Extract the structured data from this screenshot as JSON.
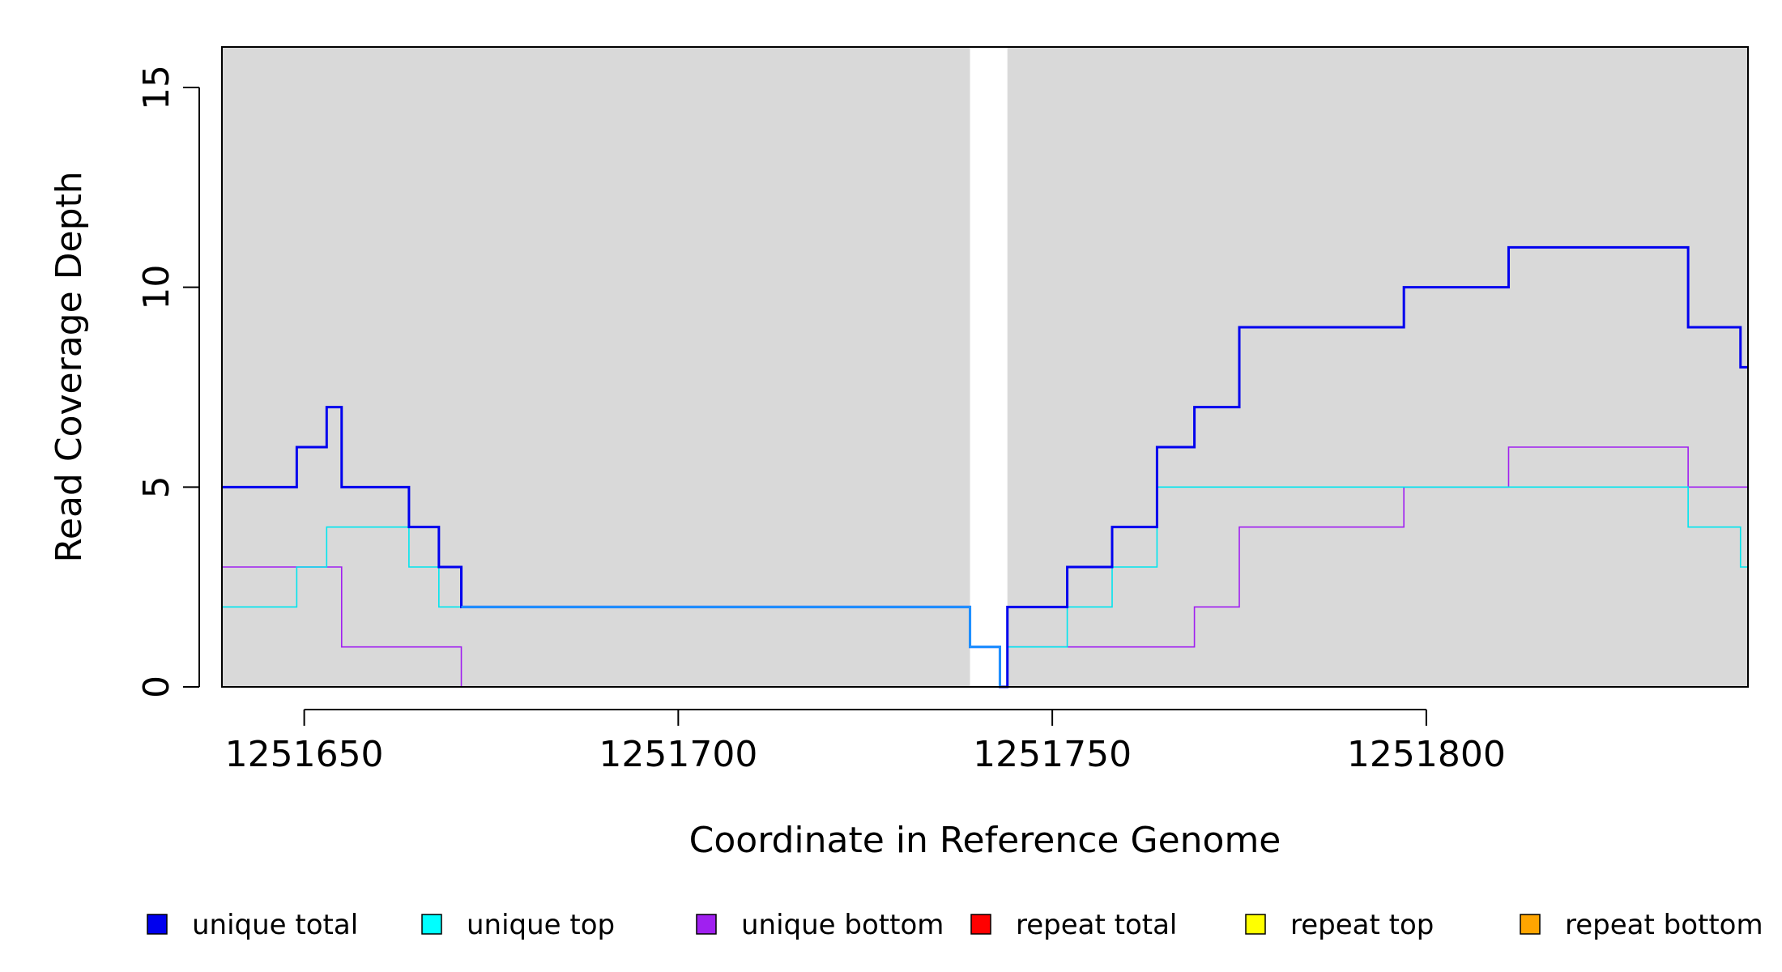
{
  "chart_data": {
    "type": "line",
    "xlabel": "Coordinate in Reference Genome",
    "ylabel": "Read Coverage Depth",
    "xlim": [
      1251639,
      1251843
    ],
    "ylim": [
      0,
      16
    ],
    "x_ticks": [
      1251650,
      1251700,
      1251750,
      1251800
    ],
    "x_tick_labels": [
      "1251650",
      "1251700",
      "1251750",
      "1251800"
    ],
    "y_ticks": [
      0,
      5,
      10,
      15
    ],
    "y_tick_labels": [
      "0",
      "5",
      "10",
      "15"
    ],
    "background_color": "#d9d9d9",
    "gap_region": [
      1251739,
      1251744
    ],
    "series": [
      {
        "name": "unique total",
        "color": "#0000ee",
        "weight": "thick",
        "x": [
          1251639,
          1251649,
          1251653,
          1251655,
          1251664,
          1251668,
          1251671,
          1251739,
          1251743,
          1251744,
          1251752,
          1251758,
          1251764,
          1251769,
          1251775,
          1251797,
          1251811,
          1251835,
          1251842,
          1251843
        ],
        "y": [
          5,
          6,
          7,
          5,
          4,
          3,
          2,
          1,
          0,
          2,
          3,
          4,
          6,
          7,
          9,
          10,
          11,
          9,
          8,
          8
        ]
      },
      {
        "name": "unique top",
        "color": "#00e5ee",
        "weight": "thin",
        "x": [
          1251639,
          1251649,
          1251653,
          1251664,
          1251668,
          1251671,
          1251739,
          1251743,
          1251744,
          1251752,
          1251758,
          1251764,
          1251835,
          1251842,
          1251843
        ],
        "y": [
          2,
          3,
          4,
          3,
          2,
          2,
          1,
          0,
          1,
          2,
          3,
          5,
          4,
          3,
          3
        ]
      },
      {
        "name": "unique bottom",
        "color": "#a020f0",
        "weight": "thin",
        "x": [
          1251639,
          1251655,
          1251671,
          1251744,
          1251769,
          1251775,
          1251797,
          1251811,
          1251835,
          1251843
        ],
        "y": [
          3,
          1,
          0,
          1,
          2,
          4,
          5,
          6,
          5,
          5
        ]
      },
      {
        "name": "repeat total",
        "color": "#ff0000",
        "weight": "thin",
        "x": [
          1251639,
          1251843
        ],
        "y": [
          0,
          0
        ]
      },
      {
        "name": "repeat top",
        "color": "#ffff00",
        "weight": "thin",
        "x": [
          1251639,
          1251843
        ],
        "y": [
          0,
          0
        ]
      },
      {
        "name": "repeat bottom",
        "color": "#ffa500",
        "weight": "thin",
        "x": [
          1251639,
          1251843
        ],
        "y": [
          0,
          0
        ]
      }
    ],
    "legend": {
      "placement": "bottom",
      "items": [
        {
          "label": "unique total",
          "color": "#0000ee"
        },
        {
          "label": "unique top",
          "color": "#00ffff"
        },
        {
          "label": "unique bottom",
          "color": "#a020f0"
        },
        {
          "label": "repeat total",
          "color": "#ff0000"
        },
        {
          "label": "repeat top",
          "color": "#ffff00"
        },
        {
          "label": "repeat bottom",
          "color": "#ffa500"
        }
      ]
    }
  }
}
